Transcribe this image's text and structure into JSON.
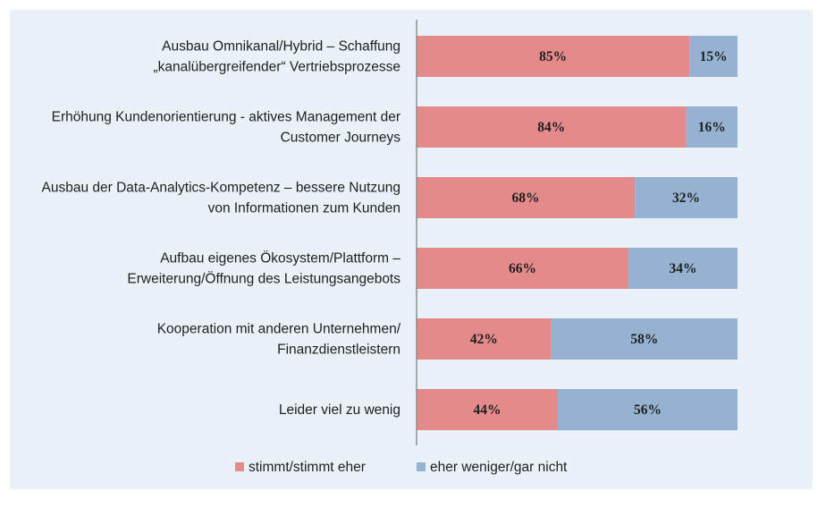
{
  "chart_data": {
    "type": "bar",
    "stacked": true,
    "orientation": "horizontal",
    "percent": true,
    "xlim": [
      0,
      100
    ],
    "grid": false,
    "legend_position": "bottom",
    "categories": [
      [
        "Ausbau Omnikanal/Hybrid – Schaffung",
        "„kanalübergreifender“ Vertriebsprozesse"
      ],
      [
        "Erhöhung Kundenorientierung - aktives Management der",
        "Customer Journeys"
      ],
      [
        "Ausbau der Data-Analytics-Kompetenz – bessere Nutzung",
        "von Informationen zum Kunden"
      ],
      [
        "Aufbau eigenes Ökosystem/Plattform –",
        "Erweiterung/Öffnung des Leistungsangebots"
      ],
      [
        "Kooperation mit anderen Unternehmen/",
        "Finanzdienstleistern"
      ],
      [
        "Leider viel zu wenig"
      ]
    ],
    "series": [
      {
        "name": "stimmt/stimmt eher",
        "color": "#e48a8a",
        "values": [
          85,
          84,
          68,
          66,
          42,
          44
        ]
      },
      {
        "name": "eher weniger/gar nicht",
        "color": "#95b3d0",
        "values": [
          15,
          16,
          32,
          34,
          58,
          56
        ]
      }
    ],
    "value_suffix": "%",
    "colors": {
      "background": "#eaf1f8",
      "axis": "#808080"
    }
  }
}
